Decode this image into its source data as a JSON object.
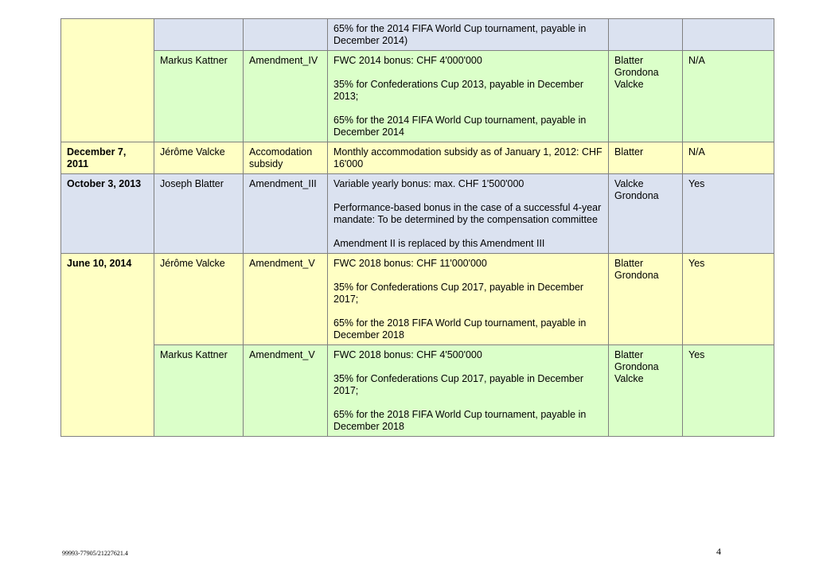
{
  "rows": [
    {
      "date": "",
      "name": "",
      "document": "",
      "paragraphs": [
        "65% for the 2014 FIFA World Cup tournament, payable in December 2014)"
      ],
      "signatories": [],
      "approved": ""
    },
    {
      "name": "Markus Kattner",
      "document": "Amendment_IV",
      "paragraphs": [
        "FWC 2014 bonus: CHF 4'000'000",
        "35% for Confederations Cup 2013, payable in December 2013;",
        "65% for the 2014 FIFA World Cup tournament, payable in December 2014"
      ],
      "signatories": [
        "Blatter",
        "Grondona",
        "Valcke"
      ],
      "approved": "N/A"
    },
    {
      "date": "December 7, 2011",
      "name": "Jérôme Valcke",
      "document": "Accomodation subsidy",
      "paragraphs": [
        "Monthly accommodation subsidy as of January 1, 2012: CHF 16'000"
      ],
      "signatories": [
        "Blatter"
      ],
      "approved": "N/A"
    },
    {
      "date": "October 3, 2013",
      "name": "Joseph Blatter",
      "document": "Amendment_III",
      "paragraphs": [
        "Variable yearly bonus: max. CHF 1'500'000",
        "Performance-based bonus in the case of a successful 4-year mandate: To be determined by the compensation committee",
        "Amendment II is replaced by this Amendment III"
      ],
      "signatories": [
        "Valcke",
        "Grondona"
      ],
      "approved": "Yes"
    },
    {
      "date": "June 10, 2014",
      "name": "Jérôme Valcke",
      "document": "Amendment_V",
      "paragraphs": [
        "FWC 2018 bonus: CHF 11'000'000",
        "35% for Confederations Cup 2017, payable in December 2017;",
        "65% for the 2018 FIFA World Cup tournament, payable in December 2018"
      ],
      "signatories": [
        "Blatter",
        "Grondona"
      ],
      "approved": "Yes"
    },
    {
      "name": "Markus Kattner",
      "document": "Amendment_V",
      "paragraphs": [
        "FWC 2018 bonus: CHF 4'500'000",
        "35% for Confederations Cup 2017, payable in December 2017;",
        "65% for the 2018 FIFA World Cup tournament, payable in December 2018"
      ],
      "signatories": [
        "Blatter",
        "Grondona",
        "Valcke"
      ],
      "approved": "Yes"
    }
  ],
  "footer": {
    "reference": "99993-77905/21227621.4",
    "page_number": "4"
  },
  "colors": {
    "yellow": "#ffffc4",
    "green": "#dbffc9",
    "blue": "#dbe2f0"
  }
}
